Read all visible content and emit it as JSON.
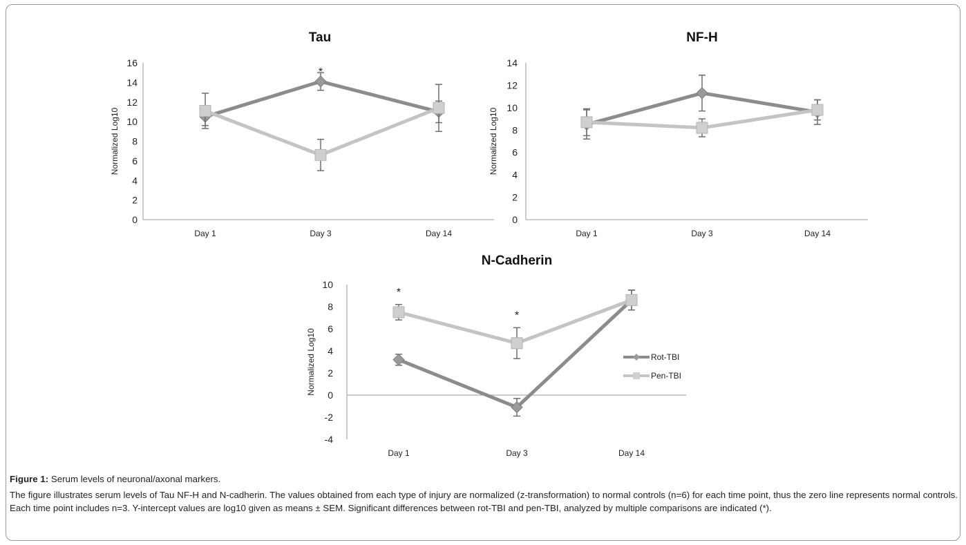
{
  "chart_data": [
    {
      "type": "line",
      "title": "Tau",
      "ylabel": "Normalized Log10",
      "xlabel": "",
      "categories": [
        "Day 1",
        "Day 3",
        "Day 14"
      ],
      "ylim": [
        0,
        16
      ],
      "yticks": [
        0,
        2,
        4,
        6,
        8,
        10,
        12,
        14,
        16
      ],
      "grid": false,
      "series": [
        {
          "name": "Rot-TBI",
          "color": "#8c8c8c",
          "marker": "diamond",
          "values": [
            10.5,
            14.1,
            11.0
          ],
          "err": [
            0.9,
            0.9,
            1.1
          ]
        },
        {
          "name": "Pen-TBI",
          "color": "#c4c4c4",
          "marker": "square",
          "values": [
            11.1,
            6.6,
            11.4
          ],
          "err": [
            1.8,
            1.6,
            2.4
          ]
        }
      ],
      "annotations": [
        {
          "category": "Day 3",
          "text": "*",
          "y": 15.3
        }
      ]
    },
    {
      "type": "line",
      "title": "NF-H",
      "ylabel": "Normalized Log10",
      "xlabel": "",
      "categories": [
        "Day 1",
        "Day 3",
        "Day 14"
      ],
      "ylim": [
        0,
        14
      ],
      "yticks": [
        0,
        2,
        4,
        6,
        8,
        10,
        12,
        14
      ],
      "grid": false,
      "series": [
        {
          "name": "Rot-TBI",
          "color": "#8c8c8c",
          "marker": "diamond",
          "values": [
            8.5,
            11.3,
            9.6
          ],
          "err": [
            1.3,
            1.6,
            1.1
          ]
        },
        {
          "name": "Pen-TBI",
          "color": "#c4c4c4",
          "marker": "square",
          "values": [
            8.7,
            8.2,
            9.8
          ],
          "err": [
            1.2,
            0.8,
            0.9
          ]
        }
      ],
      "annotations": []
    },
    {
      "type": "line",
      "title": "N-Cadherin",
      "ylabel": "Normalized Log10",
      "xlabel": "",
      "categories": [
        "Day 1",
        "Day 3",
        "Day 14"
      ],
      "ylim": [
        -4,
        10
      ],
      "yticks": [
        -4,
        -2,
        0,
        2,
        4,
        6,
        8,
        10
      ],
      "grid": false,
      "legend_position": "right",
      "series": [
        {
          "name": "Rot-TBI",
          "color": "#8c8c8c",
          "marker": "diamond",
          "values": [
            3.2,
            -1.1,
            8.6
          ],
          "err": [
            0.5,
            0.8,
            0.9
          ]
        },
        {
          "name": "Pen-TBI",
          "color": "#c4c4c4",
          "marker": "square",
          "values": [
            7.5,
            4.7,
            8.6
          ],
          "err": [
            0.7,
            1.4,
            0.9
          ]
        }
      ],
      "annotations": [
        {
          "category": "Day 1",
          "text": "*",
          "y": 9.5
        },
        {
          "category": "Day 3",
          "text": "*",
          "y": 7.4
        }
      ]
    }
  ],
  "caption": {
    "label": "Figure 1:",
    "title": "Serum levels of neuronal/axonal markers.",
    "body": "The figure illustrates serum levels of Tau NF-H and N-cadherin. The values obtained from each type of injury are normalized (z-transformation) to normal controls (n=6) for each time point, thus the zero line represents normal controls. Each time point includes n=3. Y-intercept values are log10 given as means ± SEM. Significant differences between rot-TBI and pen-TBI, analyzed by multiple comparisons are indicated (*)."
  }
}
